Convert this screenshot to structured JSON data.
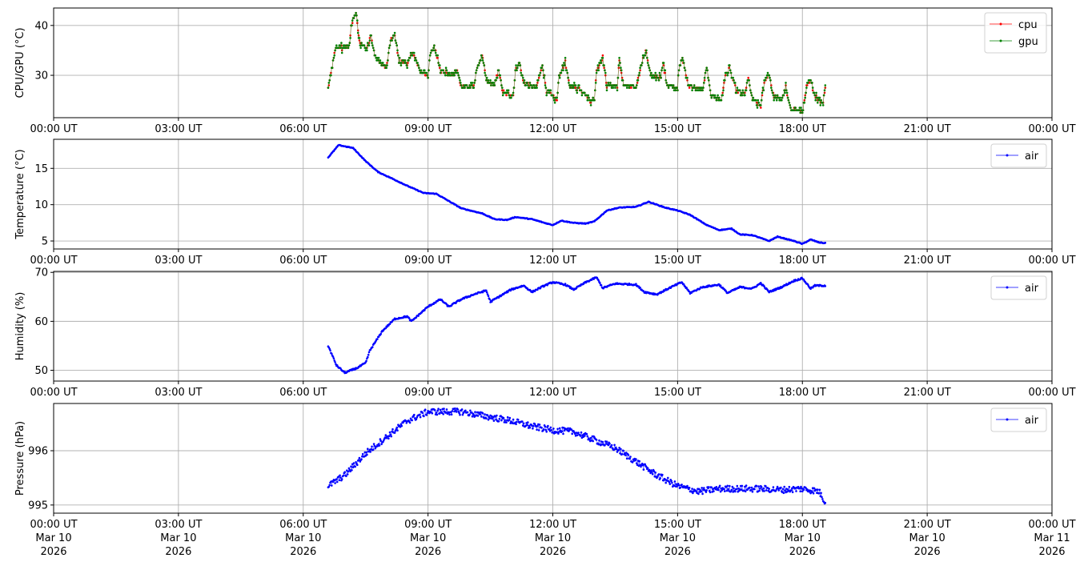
{
  "chart_data": [
    {
      "type": "line",
      "ylabel": "CPU/GPU (°C)",
      "ylim": [
        21.5,
        43.5
      ],
      "yticks": [
        30,
        40
      ],
      "xlim_hours": [
        0,
        24
      ],
      "xticks": [
        "00:00 UT",
        "03:00 UT",
        "06:00 UT",
        "09:00 UT",
        "12:00 UT",
        "15:00 UT",
        "18:00 UT",
        "21:00 UT",
        "00:00 UT"
      ],
      "grid": true,
      "legend_position": "top-right",
      "series": [
        {
          "name": "cpu",
          "color": "#ff0000"
        },
        {
          "name": "gpu",
          "color": "#008000"
        }
      ],
      "noise": 0.4,
      "quantize": 0.5,
      "points": [
        [
          6.6,
          27.5
        ],
        [
          6.68,
          31
        ],
        [
          6.78,
          35.5
        ],
        [
          7.1,
          35.5
        ],
        [
          7.15,
          40
        ],
        [
          7.27,
          42.5
        ],
        [
          7.35,
          36.5
        ],
        [
          7.55,
          35.5
        ],
        [
          7.62,
          38.5
        ],
        [
          7.72,
          34
        ],
        [
          7.9,
          32
        ],
        [
          8.0,
          31.5
        ],
        [
          8.1,
          37
        ],
        [
          8.2,
          38
        ],
        [
          8.3,
          33
        ],
        [
          8.5,
          32.5
        ],
        [
          8.65,
          34.5
        ],
        [
          8.8,
          31
        ],
        [
          9.0,
          29.8
        ],
        [
          9.05,
          34
        ],
        [
          9.15,
          36
        ],
        [
          9.3,
          31
        ],
        [
          9.6,
          30
        ],
        [
          9.7,
          31
        ],
        [
          9.8,
          27.8
        ],
        [
          10.1,
          27.8
        ],
        [
          10.15,
          30.5
        ],
        [
          10.3,
          34.2
        ],
        [
          10.4,
          29
        ],
        [
          10.6,
          28
        ],
        [
          10.7,
          31
        ],
        [
          10.8,
          26.5
        ],
        [
          11.05,
          26
        ],
        [
          11.1,
          31
        ],
        [
          11.2,
          32.5
        ],
        [
          11.3,
          28.5
        ],
        [
          11.6,
          27.5
        ],
        [
          11.75,
          32
        ],
        [
          11.85,
          27
        ],
        [
          12.1,
          25
        ],
        [
          12.15,
          30
        ],
        [
          12.3,
          32.5
        ],
        [
          12.4,
          28
        ],
        [
          12.7,
          27
        ],
        [
          12.9,
          25
        ],
        [
          13.0,
          25
        ],
        [
          13.05,
          31
        ],
        [
          13.2,
          33.5
        ],
        [
          13.3,
          28
        ],
        [
          13.55,
          28
        ],
        [
          13.6,
          33
        ],
        [
          13.7,
          28
        ],
        [
          14.0,
          27.5
        ],
        [
          14.15,
          33
        ],
        [
          14.25,
          34.7
        ],
        [
          14.35,
          30
        ],
        [
          14.6,
          29.5
        ],
        [
          14.65,
          32.5
        ],
        [
          14.75,
          28
        ],
        [
          15.0,
          27.5
        ],
        [
          15.02,
          31
        ],
        [
          15.12,
          33.5
        ],
        [
          15.25,
          28
        ],
        [
          15.6,
          27
        ],
        [
          15.7,
          31.5
        ],
        [
          15.8,
          26
        ],
        [
          16.05,
          25
        ],
        [
          16.15,
          30
        ],
        [
          16.25,
          31.5
        ],
        [
          16.4,
          27
        ],
        [
          16.6,
          26
        ],
        [
          16.7,
          29.5
        ],
        [
          16.8,
          25
        ],
        [
          17.0,
          24
        ],
        [
          17.1,
          29
        ],
        [
          17.2,
          30.3
        ],
        [
          17.3,
          26
        ],
        [
          17.5,
          25
        ],
        [
          17.6,
          27.5
        ],
        [
          17.7,
          23.5
        ],
        [
          17.9,
          23
        ],
        [
          18.0,
          22.5
        ],
        [
          18.1,
          27.5
        ],
        [
          18.2,
          29
        ],
        [
          18.3,
          26
        ],
        [
          18.5,
          24.5
        ],
        [
          18.55,
          27.8
        ]
      ]
    },
    {
      "type": "line",
      "ylabel": "Temperature (°C)",
      "ylim": [
        3.9,
        19
      ],
      "yticks": [
        5,
        10,
        15
      ],
      "xlim_hours": [
        0,
        24
      ],
      "xticks": [
        "00:00 UT",
        "03:00 UT",
        "06:00 UT",
        "09:00 UT",
        "12:00 UT",
        "15:00 UT",
        "18:00 UT",
        "21:00 UT",
        "00:00 UT"
      ],
      "grid": true,
      "legend_position": "top-right",
      "series": [
        {
          "name": "air",
          "color": "#0000ff"
        }
      ],
      "noise": 0.05,
      "points": [
        [
          6.6,
          16.5
        ],
        [
          6.85,
          18.2
        ],
        [
          7.2,
          17.8
        ],
        [
          7.5,
          16
        ],
        [
          7.8,
          14.5
        ],
        [
          8.1,
          13.7
        ],
        [
          8.5,
          12.6
        ],
        [
          8.9,
          11.6
        ],
        [
          9.2,
          11.5
        ],
        [
          9.5,
          10.5
        ],
        [
          9.8,
          9.5
        ],
        [
          10.3,
          8.8
        ],
        [
          10.6,
          8
        ],
        [
          10.9,
          7.9
        ],
        [
          11.1,
          8.3
        ],
        [
          11.5,
          8.0
        ],
        [
          11.8,
          7.5
        ],
        [
          12.0,
          7.2
        ],
        [
          12.2,
          7.8
        ],
        [
          12.5,
          7.5
        ],
        [
          12.8,
          7.4
        ],
        [
          13.0,
          7.7
        ],
        [
          13.3,
          9.2
        ],
        [
          13.6,
          9.6
        ],
        [
          14.0,
          9.7
        ],
        [
          14.3,
          10.4
        ],
        [
          14.7,
          9.6
        ],
        [
          15.0,
          9.2
        ],
        [
          15.3,
          8.6
        ],
        [
          15.7,
          7.2
        ],
        [
          16.0,
          6.5
        ],
        [
          16.3,
          6.7
        ],
        [
          16.5,
          5.9
        ],
        [
          16.8,
          5.8
        ],
        [
          17.2,
          5
        ],
        [
          17.4,
          5.6
        ],
        [
          17.8,
          5
        ],
        [
          18.0,
          4.6
        ],
        [
          18.2,
          5.2
        ],
        [
          18.4,
          4.8
        ],
        [
          18.55,
          4.7
        ]
      ]
    },
    {
      "type": "line",
      "ylabel": "Humidity (%)",
      "ylim": [
        47.8,
        70.2
      ],
      "yticks": [
        50,
        60,
        70
      ],
      "xlim_hours": [
        0,
        24
      ],
      "xticks": [
        "00:00 UT",
        "03:00 UT",
        "06:00 UT",
        "09:00 UT",
        "12:00 UT",
        "15:00 UT",
        "18:00 UT",
        "21:00 UT",
        "00:00 UT"
      ],
      "grid": true,
      "legend_position": "top-right",
      "series": [
        {
          "name": "air",
          "color": "#0000ff"
        }
      ],
      "noise": 0.15,
      "points": [
        [
          6.6,
          55
        ],
        [
          6.7,
          53
        ],
        [
          6.8,
          51
        ],
        [
          7.0,
          49.5
        ],
        [
          7.3,
          50.5
        ],
        [
          7.5,
          51.5
        ],
        [
          7.6,
          54
        ],
        [
          7.9,
          58
        ],
        [
          8.2,
          60.5
        ],
        [
          8.5,
          61
        ],
        [
          8.6,
          60
        ],
        [
          9.0,
          63
        ],
        [
          9.3,
          64.5
        ],
        [
          9.5,
          63
        ],
        [
          9.8,
          64.5
        ],
        [
          10.1,
          65.5
        ],
        [
          10.4,
          66.3
        ],
        [
          10.5,
          64
        ],
        [
          10.8,
          65.5
        ],
        [
          11.0,
          66.5
        ],
        [
          11.3,
          67.3
        ],
        [
          11.5,
          66
        ],
        [
          11.8,
          67.3
        ],
        [
          12.0,
          68
        ],
        [
          12.3,
          67.5
        ],
        [
          12.5,
          66.5
        ],
        [
          12.8,
          68
        ],
        [
          13.05,
          69
        ],
        [
          13.2,
          66.8
        ],
        [
          13.5,
          67.7
        ],
        [
          14.0,
          67.5
        ],
        [
          14.2,
          66
        ],
        [
          14.5,
          65.5
        ],
        [
          14.8,
          66.8
        ],
        [
          15.1,
          68
        ],
        [
          15.3,
          65.8
        ],
        [
          15.6,
          67
        ],
        [
          16.0,
          67.5
        ],
        [
          16.2,
          65.8
        ],
        [
          16.5,
          67
        ],
        [
          16.8,
          66.7
        ],
        [
          17.0,
          67.8
        ],
        [
          17.2,
          66
        ],
        [
          17.5,
          67
        ],
        [
          17.8,
          68.3
        ],
        [
          18.0,
          68.8
        ],
        [
          18.2,
          66.7
        ],
        [
          18.3,
          67.3
        ],
        [
          18.55,
          67.3
        ]
      ]
    },
    {
      "type": "line",
      "ylabel": "Pressure (hPa)",
      "ylim": [
        994.85,
        996.87
      ],
      "yticks": [
        995,
        996
      ],
      "xlim_hours": [
        0,
        24
      ],
      "xticks": [
        "00:00 UT",
        "03:00 UT",
        "06:00 UT",
        "09:00 UT",
        "12:00 UT",
        "15:00 UT",
        "18:00 UT",
        "21:00 UT",
        "00:00 UT"
      ],
      "xtick_dates": [
        "Mar 10",
        "Mar 10",
        "Mar 10",
        "Mar 10",
        "Mar 10",
        "Mar 10",
        "Mar 10",
        "Mar 10",
        "Mar 11"
      ],
      "xtick_years": [
        "2026",
        "2026",
        "2026",
        "2026",
        "2026",
        "2026",
        "2026",
        "2026",
        "2026"
      ],
      "grid": true,
      "legend_position": "top-right",
      "series": [
        {
          "name": "air",
          "color": "#0000ff"
        }
      ],
      "noise": 0.06,
      "points": [
        [
          6.6,
          995.35
        ],
        [
          7.0,
          995.55
        ],
        [
          7.5,
          995.95
        ],
        [
          8.0,
          996.25
        ],
        [
          8.5,
          996.55
        ],
        [
          9.0,
          996.72
        ],
        [
          9.8,
          996.72
        ],
        [
          10.5,
          996.62
        ],
        [
          11.0,
          996.55
        ],
        [
          11.5,
          996.45
        ],
        [
          12.0,
          996.38
        ],
        [
          12.5,
          996.35
        ],
        [
          13.0,
          996.2
        ],
        [
          13.5,
          996.05
        ],
        [
          14.0,
          995.8
        ],
        [
          14.5,
          995.55
        ],
        [
          15.0,
          995.35
        ],
        [
          15.5,
          995.25
        ],
        [
          16.0,
          995.3
        ],
        [
          16.5,
          995.3
        ],
        [
          17.0,
          995.3
        ],
        [
          17.5,
          995.28
        ],
        [
          18.0,
          995.3
        ],
        [
          18.4,
          995.25
        ],
        [
          18.55,
          995.05
        ]
      ]
    }
  ]
}
